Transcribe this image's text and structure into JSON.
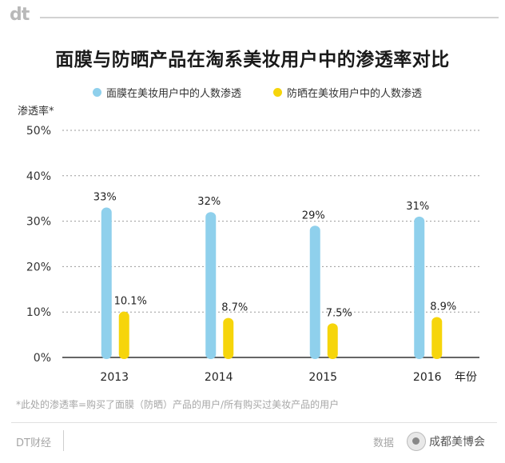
{
  "header": {
    "logo": "dt",
    "title": "面膜与防晒产品在淘系美妆用户中的渗透率对比"
  },
  "footer": {
    "footnote": "*此处的渗透率=购买了面膜（防晒）产品的用户/所有购买过美妆产品的用户",
    "source": "DT财经",
    "right_text": "数据",
    "watermark": "成都美博会"
  },
  "colors": {
    "series_0": "#8fd0ec",
    "series_1": "#f6d50b",
    "grid": "#9a9a9a",
    "axis": "#333333"
  },
  "chart_data": {
    "type": "bar",
    "title": "面膜与防晒产品在淘系美妆用户中的渗透率对比",
    "xlabel": "年份",
    "ylabel": "渗透率*",
    "categories": [
      "2013",
      "2014",
      "2015",
      "2016"
    ],
    "series": [
      {
        "name": "面膜在美妆用户中的人数渗透",
        "values": [
          33,
          32,
          29,
          31
        ],
        "labels": [
          "33%",
          "32%",
          "29%",
          "31%"
        ]
      },
      {
        "name": "防晒在美妆用户中的人数渗透",
        "values": [
          10.1,
          8.7,
          7.5,
          8.9
        ],
        "labels": [
          "10.1%",
          "8.7%",
          "7.5%",
          "8.9%"
        ]
      }
    ],
    "ylim": [
      0,
      50
    ],
    "yticks": [
      "0%",
      "10%",
      "20%",
      "30%",
      "40%",
      "50%"
    ],
    "grid": true,
    "legend_position": "top"
  }
}
